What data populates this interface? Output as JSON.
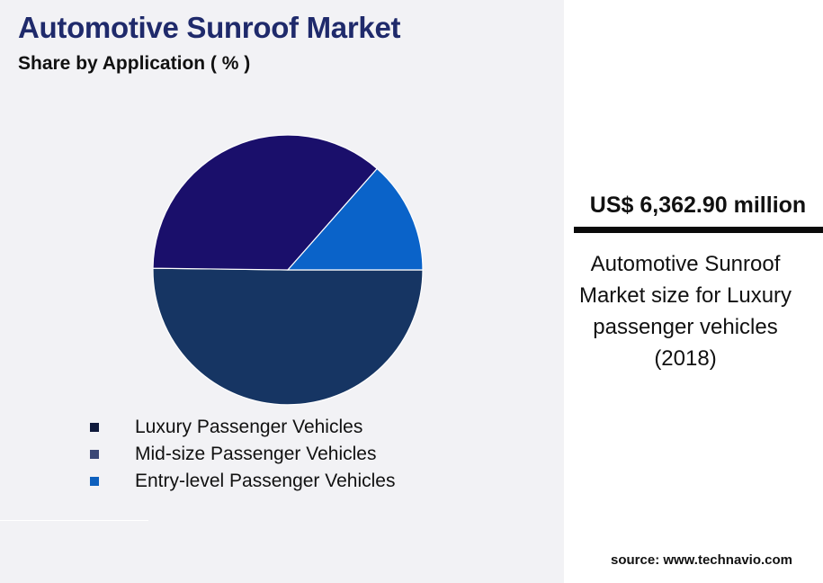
{
  "title": "Automotive Sunroof Market",
  "subtitle": "Share by Application ( % )",
  "highlight": {
    "value": "US$ 6,362.90 million",
    "description": "Automotive Sunroof Market size for Luxury passenger vehicles (2018)"
  },
  "source": "source: www.technavio.com",
  "colors": {
    "panel_background": "#f2f2f5",
    "title": "#1f2a6b"
  },
  "chart_data": {
    "type": "pie",
    "title": "Automotive Sunroof Market",
    "subtitle": "Share by Application ( % )",
    "legend_position": "bottom",
    "slices": [
      {
        "label": "Luxury Passenger Vehicles",
        "value": 50.2,
        "color": "#163563",
        "legend_color": "#0f1a3c"
      },
      {
        "label": "Mid-size Passenger Vehicles",
        "value": 36.3,
        "color": "#1a0f6b",
        "legend_color": "#3a4775"
      },
      {
        "label": "Entry-level Passenger Vehicles",
        "value": 13.5,
        "color": "#0a63c9",
        "legend_color": "#0e60bd"
      }
    ]
  }
}
